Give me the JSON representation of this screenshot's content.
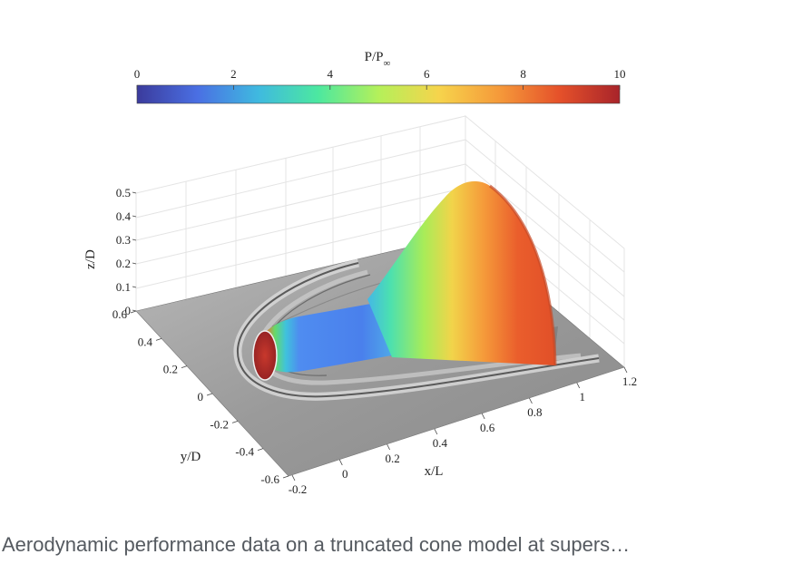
{
  "figure": {
    "colorbar": {
      "label_main": "P/P",
      "label_sub": "∞",
      "ticks": [
        "0",
        "2",
        "4",
        "6",
        "8",
        "10"
      ],
      "range": [
        0,
        10
      ],
      "colormap": [
        "#3b3b9c",
        "#4a6fe3",
        "#3fb9e0",
        "#4ce8a0",
        "#b4f05a",
        "#f6d44c",
        "#f59a3a",
        "#e5512a",
        "#a8242a"
      ]
    },
    "axes": {
      "z_label": "z/D",
      "z_ticks": [
        "0",
        "0.1",
        "0.2",
        "0.3",
        "0.4",
        "0.5"
      ],
      "y_label": "y/D",
      "y_ticks": [
        "0.6",
        "0.4",
        "0.2",
        "0",
        "-0.2",
        "-0.4",
        "-0.6"
      ],
      "x_label": "x/L",
      "x_ticks": [
        "-0.2",
        "0",
        "0.2",
        "0.4",
        "0.6",
        "0.8",
        "1",
        "1.2"
      ]
    },
    "surface_colors": {
      "nose": "#b8302a",
      "cylinder_blue": "#4f8cf0",
      "cylinder_cyan": "#42c7d8",
      "flare_green": "#7ee07a",
      "flare_yellow": "#e8d84a",
      "flare_orange": "#ef6a2e",
      "floor_gray": "#8f8f8f"
    }
  },
  "caption": "Aerodynamic performance data on a truncated cone model at supers…"
}
